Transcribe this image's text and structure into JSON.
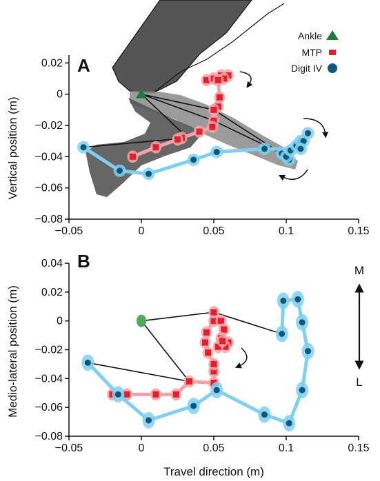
{
  "chart_data": [
    {
      "panel": "A",
      "type": "line",
      "ylabel": "Vertical position (m)",
      "xlabel": "",
      "xlim": [
        -0.05,
        0.15
      ],
      "ylim": [
        -0.08,
        0.025
      ],
      "xticks": [
        "−0.05",
        "0",
        "0.05",
        "0.1",
        "0.15"
      ],
      "yticks": [
        "0.02",
        "0",
        "−0.02",
        "−0.04",
        "−0.06",
        "−0.08"
      ],
      "legend": {
        "placement": "top-right",
        "entries": [
          "Ankle",
          "MTP",
          "Digit IV"
        ]
      },
      "colors": {
        "ankle": "#1f7a3a",
        "mtp": "#e0202c",
        "digit": "#0f5678",
        "digit_halo": "#7fcff0",
        "mtp_halo": "#f4a3a8"
      },
      "series": [
        {
          "name": "Ankle",
          "marker": "triangle",
          "points": [
            [
              0.0,
              0.0
            ]
          ]
        },
        {
          "name": "MTP",
          "marker": "square",
          "points": [
            [
              0.045,
              0.009
            ],
            [
              0.05,
              0.01
            ],
            [
              0.055,
              0.012
            ],
            [
              0.06,
              0.012
            ],
            [
              0.057,
              0.01
            ],
            [
              0.053,
              0.009
            ],
            [
              0.054,
              -0.002
            ],
            [
              0.053,
              -0.008
            ],
            [
              0.05,
              -0.01
            ],
            [
              0.05,
              -0.017
            ],
            [
              0.049,
              -0.021
            ],
            [
              0.04,
              -0.024
            ],
            [
              0.028,
              -0.028
            ],
            [
              0.025,
              -0.029
            ],
            [
              0.01,
              -0.034
            ],
            [
              -0.006,
              -0.04
            ]
          ]
        },
        {
          "name": "Digit IV",
          "marker": "circle",
          "points": [
            [
              0.097,
              -0.038
            ],
            [
              0.102,
              -0.042
            ],
            [
              0.1,
              -0.04
            ],
            [
              0.103,
              -0.036
            ],
            [
              0.107,
              -0.033
            ],
            [
              0.11,
              -0.03
            ],
            [
              0.112,
              -0.03
            ],
            [
              0.115,
              -0.025
            ],
            [
              0.11,
              -0.035
            ],
            [
              0.085,
              -0.035
            ],
            [
              0.052,
              -0.037
            ],
            [
              0.036,
              -0.042
            ],
            [
              0.005,
              -0.051
            ],
            [
              -0.015,
              -0.049
            ],
            [
              -0.04,
              -0.034
            ]
          ]
        }
      ],
      "stick_lines": [
        [
          [
            0.0,
            0.0
          ],
          [
            0.032,
            -0.028
          ],
          [
            -0.04,
            -0.034
          ]
        ],
        [
          [
            0.0,
            0.0
          ],
          [
            0.05,
            -0.017
          ],
          [
            0.097,
            -0.038
          ]
        ],
        [
          [
            0.0,
            0.0
          ],
          [
            0.05,
            -0.01
          ],
          [
            0.1,
            -0.04
          ]
        ]
      ]
    },
    {
      "panel": "B",
      "type": "line",
      "ylabel": "Medio-lateral position (m)",
      "xlabel": "Travel direction (m)",
      "xlim": [
        -0.05,
        0.15
      ],
      "ylim": [
        -0.08,
        0.04
      ],
      "xticks": [
        "−0.05",
        "0",
        "0.05",
        "0.1",
        "0.15"
      ],
      "yticks": [
        "0.04",
        "0.02",
        "0",
        "−0.02",
        "−0.04",
        "−0.06",
        "−0.08"
      ],
      "direction_labels": {
        "top": "M",
        "bottom": "L"
      },
      "series": [
        {
          "name": "Ankle",
          "marker": "ellipse",
          "points": [
            [
              0.0,
              0.0
            ]
          ]
        },
        {
          "name": "MTP",
          "marker": "square",
          "points": [
            [
              -0.02,
              -0.051
            ],
            [
              -0.01,
              -0.051
            ],
            [
              0.01,
              -0.051
            ],
            [
              0.024,
              -0.051
            ],
            [
              0.033,
              -0.042
            ],
            [
              0.05,
              -0.043
            ],
            [
              0.05,
              -0.035
            ],
            [
              0.05,
              -0.03
            ],
            [
              0.046,
              -0.022
            ],
            [
              0.044,
              -0.015
            ],
            [
              0.045,
              -0.008
            ],
            [
              0.05,
              0.0
            ],
            [
              0.05,
              0.006
            ],
            [
              0.055,
              0.0
            ],
            [
              0.057,
              -0.006
            ],
            [
              0.055,
              -0.012
            ],
            [
              0.06,
              -0.015
            ],
            [
              0.058,
              -0.018
            ],
            [
              0.053,
              -0.018
            ],
            [
              0.056,
              -0.014
            ]
          ]
        },
        {
          "name": "Digit IV",
          "marker": "circle",
          "points": [
            [
              -0.037,
              -0.029
            ],
            [
              -0.016,
              -0.051
            ],
            [
              0.005,
              -0.069
            ],
            [
              0.036,
              -0.059
            ],
            [
              0.052,
              -0.048
            ],
            [
              0.085,
              -0.065
            ],
            [
              0.102,
              -0.071
            ],
            [
              0.111,
              -0.048
            ],
            [
              0.115,
              -0.021
            ],
            [
              0.111,
              -0.001
            ],
            [
              0.108,
              0.015
            ],
            [
              0.098,
              0.014
            ],
            [
              0.097,
              -0.009
            ]
          ]
        }
      ],
      "stick_lines": [
        [
          [
            0.0,
            0.0
          ],
          [
            0.033,
            -0.042
          ],
          [
            -0.037,
            -0.029
          ]
        ],
        [
          [
            0.0,
            0.0
          ],
          [
            0.05,
            0.006
          ],
          [
            0.097,
            -0.009
          ]
        ]
      ]
    }
  ]
}
